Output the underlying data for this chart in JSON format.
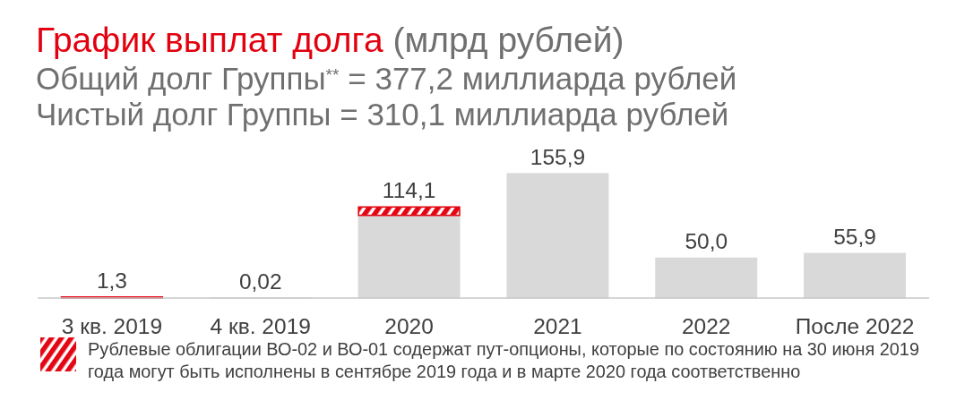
{
  "chart_data": {
    "type": "bar",
    "title": "График выплат долга (млрд рублей)",
    "subtitle": "Общий долг Группы$^{**}$ = 377,2 миллиарда рублей\nЧистый долг Группы = 310,1 миллиарда рублей",
    "categories": [
      "3 кв. 2019",
      "4 кв. 2019",
      "2020",
      "2021",
      "2022",
      "После 2022"
    ],
    "stacked": true,
    "series": [
      {
        "color": "#d9d9d9",
        "values": [
          null,
          0.02,
          103.6,
          155.9,
          50.0,
          55.9
        ],
        "value_labels": [
          null,
          "0,02",
          null,
          "155,9",
          "50,0",
          "55,9"
        ]
      },
      {
        "name": "Рублевые облигации ВО-02 и ВО-01 содержат пут-опционы, которые по состоянию на 30 июня 2019 года могут быть исполнены в сентябре 2019 года и в марте 2020 года соответственно",
        "color": "#e30613",
        "values": [
          1.3,
          null,
          10.5,
          null,
          null,
          null
        ],
        "value_labels": [
          "1,3",
          null,
          null,
          null,
          null,
          null
        ]
      }
    ],
    "totals": [
      null,
      null,
      "114,1",
      null,
      null,
      null
    ],
    "legend": "bottom"
  }
}
